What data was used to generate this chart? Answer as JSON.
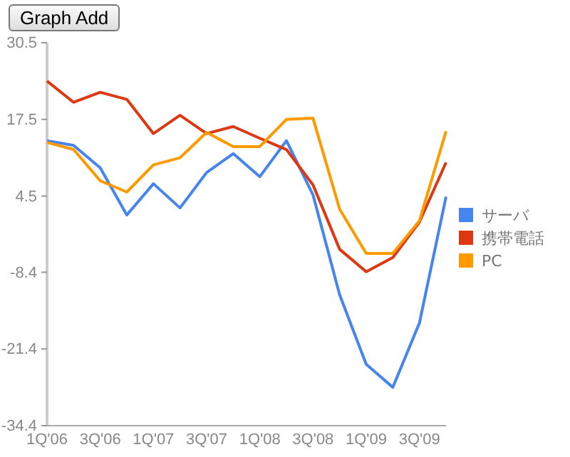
{
  "chart_data": {
    "type": "line",
    "annotations": [
      "Graph Add"
    ],
    "categories": [
      "1Q'06",
      null,
      "3Q'06",
      null,
      "1Q'07",
      null,
      "3Q'07",
      null,
      "1Q'08",
      null,
      "3Q'08",
      null,
      "1Q'09",
      null,
      "3Q'09",
      null
    ],
    "series": [
      {
        "name": "サーバ",
        "color": "#4684ee",
        "values": [
          13.9,
          13.1,
          9.3,
          1.3,
          6.6,
          2.5,
          8.5,
          11.7,
          7.8,
          13.9,
          4.7,
          -12.2,
          -24.0,
          -27.9,
          -17.0,
          4.4
        ]
      },
      {
        "name": "携帯電話",
        "color": "#dc3912",
        "values": [
          24.0,
          20.4,
          22.1,
          20.9,
          15.1,
          18.2,
          15.1,
          16.3,
          14.3,
          12.4,
          6.4,
          -4.5,
          -8.3,
          -5.9,
          0.1,
          10.2
        ]
      },
      {
        "name": "PC",
        "color": "#ff9900",
        "values": [
          13.6,
          12.4,
          7.1,
          5.2,
          9.8,
          11.0,
          15.3,
          12.9,
          12.9,
          17.5,
          17.7,
          2.3,
          -5.2,
          -5.2,
          0.3,
          15.5
        ]
      }
    ],
    "ylim": [
      -34.4,
      30.5
    ],
    "yticks": [
      -34.4,
      -21.4,
      -8.4,
      4.5,
      17.5,
      30.5
    ],
    "grid": false,
    "legend": "right",
    "marker": "none",
    "line_style": "solid"
  }
}
